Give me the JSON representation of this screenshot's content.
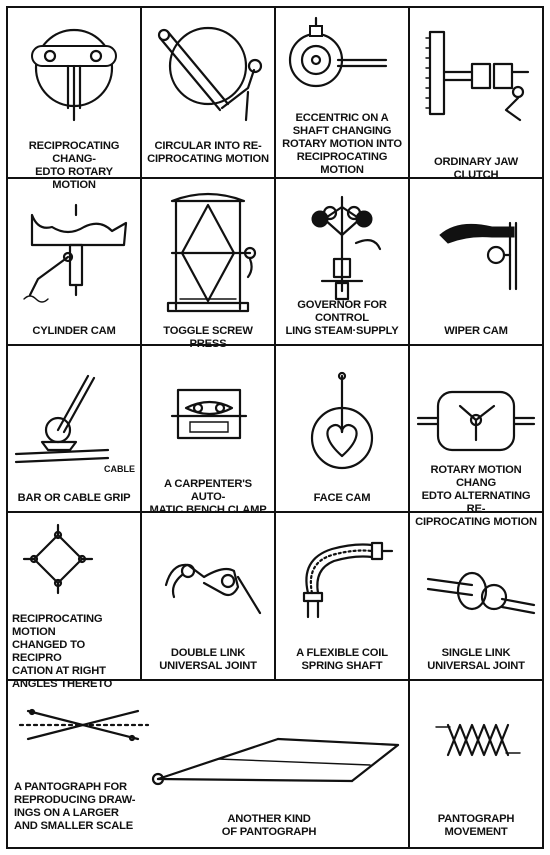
{
  "cells": [
    {
      "caption": "RECIPROCATING CHANG-\nEDTO ROTARY MOTION"
    },
    {
      "caption": "CIRCULAR INTO RE-\nCIPROCATING MOTION"
    },
    {
      "caption": "ECCENTRIC ON A\nSHAFT CHANGING\nROTARY MOTION INTO\nRECIPROCATING MOTION"
    },
    {
      "caption": "ORDINARY JAW CLUTCH"
    },
    {
      "caption": "CYLINDER CAM"
    },
    {
      "caption": "TOGGLE SCREW PRESS"
    },
    {
      "caption": "GOVERNOR FOR CONTROL\nLING STEAM·SUPPLY"
    },
    {
      "caption": "WIPER CAM"
    },
    {
      "caption": "BAR OR CABLE GRIP",
      "extra": "CABLE"
    },
    {
      "caption": "A CARPENTER'S AUTO-\nMATIC BENCH CLAMP"
    },
    {
      "caption": "FACE CAM"
    },
    {
      "caption": "ROTARY MOTION CHANG\nEDTO ALTERNATING RE-\nCIPROCATING MOTION"
    },
    {
      "caption": "RECIPROCATING MOTION\nCHANGED TO RECIPRO\nCATION AT RIGHT\nANGLES THERETO"
    },
    {
      "caption": "DOUBLE LINK\nUNIVERSAL JOINT"
    },
    {
      "caption": "A FLEXIBLE COIL\nSPRING SHAFT"
    },
    {
      "caption": "SINGLE LINK\nUNIVERSAL JOINT"
    }
  ],
  "bottom": {
    "pantograph_1": "A PANTOGRAPH FOR\nREPRODUCING DRAW-\nINGS ON A LARGER\nAND SMALLER SCALE",
    "pantograph_2": "ANOTHER KIND\nOF PANTOGRAPH",
    "pantograph_3": "PANTOGRAPH\nMOVEMENT"
  }
}
